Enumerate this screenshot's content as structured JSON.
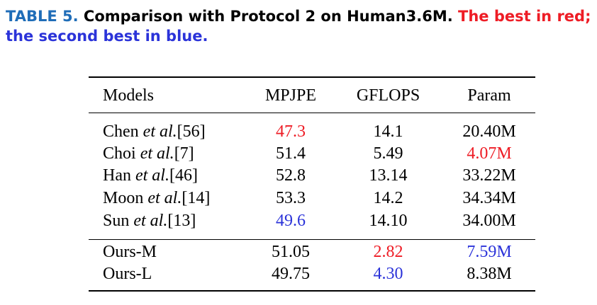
{
  "caption": {
    "label": "TABLE 5.",
    "title": "Comparison with Protocol 2 on Human3.6M.",
    "best_note": "The best in red;",
    "second_note": "the second best in blue."
  },
  "table": {
    "headers": [
      "Models",
      "MPJPE",
      "GFLOPS",
      "Param"
    ],
    "rows": [
      {
        "name": "Chen",
        "etal": "et al.",
        "ref": "[56]",
        "mpjpe": "47.3",
        "gflops": "14.1",
        "param": "20.40M"
      },
      {
        "name": "Choi",
        "etal": "et al.",
        "ref": "[7]",
        "mpjpe": "51.4",
        "gflops": "5.49",
        "param": "4.07M"
      },
      {
        "name": "Han",
        "etal": "et al.",
        "ref": "[46]",
        "mpjpe": "52.8",
        "gflops": "13.14",
        "param": "33.22M"
      },
      {
        "name": "Moon",
        "etal": "et al.",
        "ref": "[14]",
        "mpjpe": "53.3",
        "gflops": "14.2",
        "param": "34.34M"
      },
      {
        "name": "Sun",
        "etal": "et al.",
        "ref": "[13]",
        "mpjpe": "49.6",
        "gflops": "14.10",
        "param": "34.00M"
      }
    ],
    "ours": [
      {
        "name": "Ours-M",
        "mpjpe": "51.05",
        "gflops": "2.82",
        "param": "7.59M"
      },
      {
        "name": "Ours-L",
        "mpjpe": "49.75",
        "gflops": "4.30",
        "param": "8.38M"
      }
    ],
    "highlight_colors": {
      "best": "#ee1c25",
      "second": "#2b33d9"
    }
  }
}
